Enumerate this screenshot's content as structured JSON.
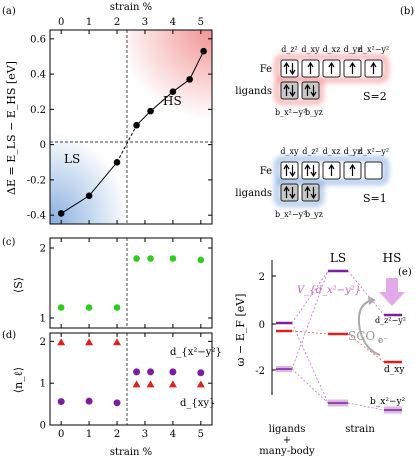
{
  "panels": {
    "a": "(a)",
    "b": "(b)",
    "c": "(c)",
    "d": "(d)",
    "e": "(e)"
  },
  "chart_data": [
    {
      "type": "line",
      "panel": "a",
      "top_axis_label": "strain %",
      "ylabel": "ΔE = E_LS − E_HS [eV]",
      "x": [
        0,
        1,
        2,
        2.7,
        3.2,
        4,
        4.6,
        5.1
      ],
      "y": [
        -0.39,
        -0.29,
        -0.1,
        0.11,
        0.19,
        0.3,
        0.37,
        0.53
      ],
      "xlim": [
        -0.4,
        5.4
      ],
      "ylim": [
        -0.45,
        0.65
      ],
      "xticks": [
        "0",
        "1",
        "2",
        "3",
        "4",
        "5"
      ],
      "yticks": [
        "-0.4",
        "-0.2",
        "0",
        "0.2",
        "0.4",
        "0.6"
      ],
      "annotations": [
        "LS",
        "HS"
      ],
      "colors": {
        "LS_region": "#6f9fd8",
        "HS_region": "#f08080"
      }
    },
    {
      "type": "scatter",
      "panel": "c",
      "ylabel": "⟨S⟩",
      "x": [
        0,
        1,
        2,
        2.7,
        3.2,
        4,
        5
      ],
      "y": [
        1.15,
        1.15,
        1.15,
        1.85,
        1.85,
        1.85,
        1.83
      ],
      "xlim": [
        -0.4,
        5.4
      ],
      "ylim": [
        1.0,
        2.0
      ],
      "yticks": [
        "1",
        "2"
      ],
      "color": "#2ecc1f"
    },
    {
      "type": "scatter",
      "panel": "d",
      "ylabel": "⟨n_ℓ⟩",
      "xlabel": "strain %",
      "xlim": [
        -0.4,
        5.4
      ],
      "ylim": [
        0,
        2.2
      ],
      "xticks": [
        "0",
        "1",
        "2",
        "3",
        "4",
        "5"
      ],
      "yticks": [
        "0",
        "1",
        "2"
      ],
      "series": [
        {
          "name": "d_{x²−y²}",
          "marker": "triangle",
          "color": "#e0201e",
          "x": [
            0,
            1,
            2,
            2.7,
            3.2,
            4,
            5
          ],
          "y": [
            1.98,
            1.98,
            1.98,
            0.97,
            0.97,
            0.97,
            0.97
          ]
        },
        {
          "name": "d_{xy}",
          "marker": "circle",
          "color": "#7b1fa2",
          "x": [
            0,
            1,
            2,
            2.7,
            3.2,
            4,
            5
          ],
          "y": [
            0.56,
            0.57,
            0.53,
            1.27,
            1.27,
            1.27,
            1.25
          ]
        }
      ]
    }
  ],
  "b": {
    "hs": {
      "orbitals": [
        "d_z²",
        "d_xy",
        "d_xz",
        "d_yz",
        "d_x²−y²"
      ],
      "fe_label": "Fe",
      "lig_label": "ligands",
      "fe_spins": [
        "updown",
        "up",
        "up",
        "up",
        "up"
      ],
      "lig_spins": [
        "updown",
        "updown"
      ],
      "bottom": [
        "b_x²−y²",
        "b_yz"
      ],
      "spin": "S=2",
      "color": "#f08080"
    },
    "ls": {
      "orbitals": [
        "d_xy",
        "d_z²",
        "d_xz",
        "d_yz",
        "d_x²−y²"
      ],
      "fe_label": "Fe",
      "lig_label": "ligands",
      "fe_spins": [
        "updown",
        "updown",
        "up",
        "up",
        "none"
      ],
      "lig_spins": [
        "updown",
        "updown"
      ],
      "bottom": [
        "b_x²−y²",
        "b_yz"
      ],
      "spin": "S=1",
      "color": "#6f9fd8"
    }
  },
  "e": {
    "ylabel": "ω − E_F [eV]",
    "yticks": [
      "2",
      "0",
      "-2"
    ],
    "col_labels": [
      "LS",
      "HS"
    ],
    "bottom_left": "ligands",
    "bottom_plus": "+",
    "bottom_many": "many-body",
    "bottom_right": "strain",
    "level_labels": [
      "V_{d_x²−y²}",
      "d_z²−y²",
      "d_xy",
      "b_x²−y²",
      "SCO",
      "e⁻"
    ]
  }
}
